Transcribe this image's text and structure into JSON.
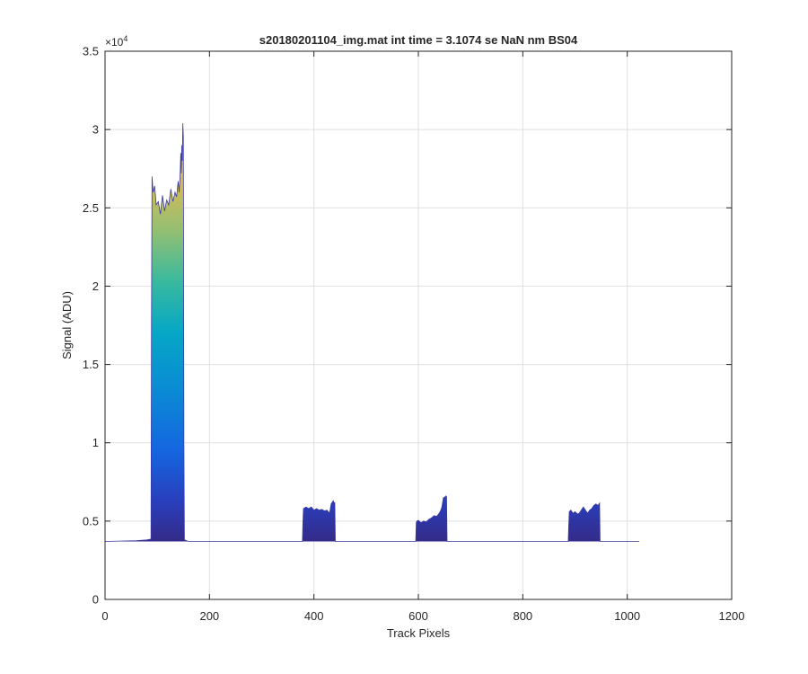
{
  "chart_data": {
    "type": "area",
    "title": "s20180201104_img.mat int time = 3.1074 se  NaN nm BS04",
    "xlabel": "Track Pixels",
    "ylabel": "Signal (ADU)",
    "xlim": [
      0,
      1200
    ],
    "ylim": [
      0,
      35000
    ],
    "x_ticks": [
      0,
      200,
      400,
      600,
      800,
      1000,
      1200
    ],
    "y_ticks": [
      0,
      5000,
      10000,
      15000,
      20000,
      25000,
      30000,
      35000
    ],
    "x_tick_labels": [
      "0",
      "200",
      "400",
      "600",
      "800",
      "1000",
      "1200"
    ],
    "y_tick_labels": [
      "0",
      "0.5",
      "1",
      "1.5",
      "2",
      "2.5",
      "3",
      "3.5"
    ],
    "y_exponent_base": "×10",
    "y_exponent_power": "4",
    "grid": true,
    "colormap": "parula",
    "baseline": 3700,
    "series": [
      {
        "x": [
          0,
          60,
          80,
          88,
          89,
          90,
          92,
          95,
          98,
          102,
          106,
          110,
          114,
          118,
          122,
          126,
          130,
          134,
          137,
          140,
          142,
          144,
          145,
          146,
          147,
          148,
          149,
          150,
          151,
          152,
          160,
          200,
          250,
          300,
          350,
          378,
          379,
          380,
          385,
          390,
          395,
          400,
          405,
          410,
          415,
          420,
          425,
          430,
          433,
          435,
          437,
          439,
          440,
          441,
          460,
          500,
          550,
          595,
          596,
          597,
          600,
          605,
          610,
          615,
          620,
          625,
          630,
          635,
          640,
          643,
          645,
          647,
          648,
          650,
          652,
          653,
          654,
          655,
          680,
          720,
          760,
          800,
          850,
          887,
          888,
          889,
          892,
          896,
          900,
          905,
          908,
          912,
          916,
          920,
          924,
          928,
          932,
          936,
          940,
          944,
          946,
          947,
          948,
          980,
          1023
        ],
        "y": [
          3700,
          3750,
          3800,
          3850,
          18000,
          27000,
          26000,
          26400,
          25200,
          25400,
          24600,
          25800,
          24800,
          25500,
          25200,
          26200,
          25400,
          26000,
          25700,
          26700,
          26000,
          27300,
          28500,
          27200,
          29000,
          28000,
          30400,
          29500,
          10000,
          3800,
          3700,
          3700,
          3700,
          3700,
          3700,
          3700,
          5000,
          5800,
          5900,
          5800,
          5900,
          5700,
          5800,
          5700,
          5750,
          5650,
          5700,
          5500,
          6100,
          6200,
          6300,
          6100,
          6200,
          3700,
          3700,
          3700,
          3700,
          3700,
          4900,
          5000,
          5050,
          4900,
          5000,
          4950,
          5100,
          5200,
          5350,
          5300,
          5500,
          5700,
          5900,
          6300,
          6500,
          6500,
          6600,
          6400,
          6600,
          3700,
          3700,
          3700,
          3700,
          3700,
          3700,
          3700,
          4800,
          5600,
          5700,
          5500,
          5600,
          5450,
          5500,
          5700,
          5900,
          5700,
          5500,
          5700,
          5800,
          6000,
          6100,
          6000,
          6100,
          6150,
          3700,
          3700,
          3700
        ]
      }
    ]
  }
}
